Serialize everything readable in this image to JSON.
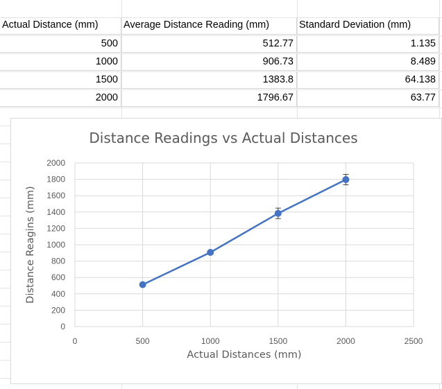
{
  "table": {
    "headers": [
      "Actual Distance (mm)",
      "Average Distance Reading (mm)",
      "Standard Deviation (mm)"
    ],
    "rows": [
      [
        "500",
        "512.77",
        "1.135"
      ],
      [
        "1000",
        "906.73",
        "8.489"
      ],
      [
        "1500",
        "1383.8",
        "64.138"
      ],
      [
        "2000",
        "1796.67",
        "63.77"
      ]
    ]
  },
  "chart_data": {
    "type": "line",
    "title": "Distance Readings vs Actual Distances",
    "xlabel": "Actual Distances (mm)",
    "ylabel": "Distance Reagins (mm)",
    "x": [
      500,
      1000,
      1500,
      2000
    ],
    "series": [
      {
        "values": [
          512.77,
          906.73,
          1383.8,
          1796.67
        ],
        "error": [
          1.135,
          8.489,
          64.138,
          63.77
        ]
      }
    ],
    "xlim": [
      0,
      2500
    ],
    "ylim": [
      0,
      2000
    ],
    "xticks": [
      "0",
      "500",
      "1000",
      "1500",
      "2000",
      "2500"
    ],
    "yticks": [
      "0",
      "200",
      "400",
      "600",
      "800",
      "1000",
      "1200",
      "1400",
      "1600",
      "1800",
      "2000"
    ],
    "grid": true,
    "line_color": "#4472C4"
  }
}
